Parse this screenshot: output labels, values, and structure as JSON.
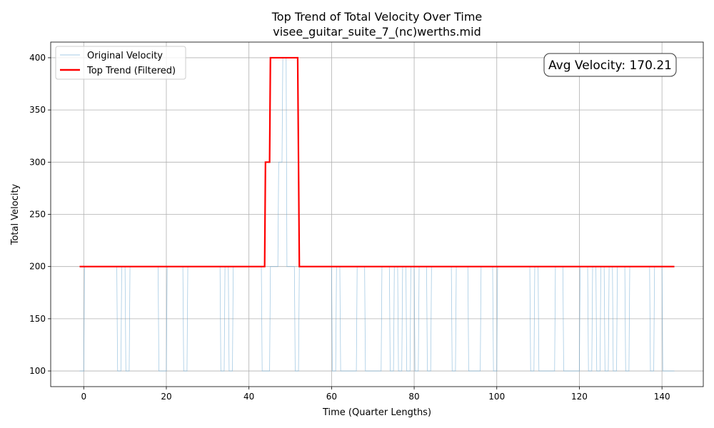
{
  "chart_data": {
    "type": "line",
    "title": "Top Trend of Total Velocity Over Time",
    "subtitle": "visee_guitar_suite_7_(nc)werths.mid",
    "xlabel": "Time (Quarter Lengths)",
    "ylabel": "Total Velocity",
    "xlim": [
      -8,
      150
    ],
    "ylim": [
      85,
      415
    ],
    "xticks": [
      0,
      20,
      40,
      60,
      80,
      100,
      120,
      140
    ],
    "yticks": [
      100,
      150,
      200,
      250,
      300,
      350,
      400
    ],
    "grid": true,
    "legend_position": "top-left",
    "annotation": "Avg Velocity: 170.21",
    "series": [
      {
        "name": "Original Velocity",
        "color": "#6aa8d2",
        "points": [
          [
            -1,
            100
          ],
          [
            0,
            100
          ],
          [
            0.2,
            200
          ],
          [
            8,
            200
          ],
          [
            8.2,
            100
          ],
          [
            9,
            100
          ],
          [
            9.2,
            200
          ],
          [
            10,
            200
          ],
          [
            10.2,
            100
          ],
          [
            11,
            100
          ],
          [
            11.2,
            200
          ],
          [
            18,
            200
          ],
          [
            18.2,
            100
          ],
          [
            20,
            100
          ],
          [
            20.2,
            200
          ],
          [
            24,
            200
          ],
          [
            24.2,
            100
          ],
          [
            25,
            100
          ],
          [
            25.2,
            200
          ],
          [
            33,
            200
          ],
          [
            33.2,
            100
          ],
          [
            34,
            100
          ],
          [
            34.2,
            200
          ],
          [
            35,
            200
          ],
          [
            35.2,
            100
          ],
          [
            36,
            100
          ],
          [
            36.2,
            200
          ],
          [
            43,
            200
          ],
          [
            43.2,
            100
          ],
          [
            45,
            100
          ],
          [
            45.2,
            200
          ],
          [
            47,
            200
          ],
          [
            47.2,
            300
          ],
          [
            48,
            300
          ],
          [
            48.2,
            400
          ],
          [
            49,
            400
          ],
          [
            49.2,
            200
          ],
          [
            51,
            200
          ],
          [
            51.2,
            100
          ],
          [
            52,
            100
          ],
          [
            52.2,
            200
          ],
          [
            60,
            200
          ],
          [
            60.2,
            100
          ],
          [
            61,
            100
          ],
          [
            61.2,
            200
          ],
          [
            62,
            200
          ],
          [
            62.2,
            100
          ],
          [
            66,
            100
          ],
          [
            66.2,
            200
          ],
          [
            68,
            200
          ],
          [
            68.2,
            100
          ],
          [
            72,
            100
          ],
          [
            72.2,
            200
          ],
          [
            74,
            200
          ],
          [
            74.2,
            100
          ],
          [
            75,
            100
          ],
          [
            75.2,
            200
          ],
          [
            76,
            200
          ],
          [
            76.2,
            100
          ],
          [
            77,
            100
          ],
          [
            77.2,
            200
          ],
          [
            78,
            200
          ],
          [
            78.2,
            100
          ],
          [
            79,
            100
          ],
          [
            79.2,
            200
          ],
          [
            80,
            200
          ],
          [
            80.2,
            100
          ],
          [
            81,
            100
          ],
          [
            81.2,
            200
          ],
          [
            83,
            200
          ],
          [
            83.2,
            100
          ],
          [
            84,
            100
          ],
          [
            84.2,
            200
          ],
          [
            89,
            200
          ],
          [
            89.2,
            100
          ],
          [
            90,
            100
          ],
          [
            90.2,
            200
          ],
          [
            93,
            200
          ],
          [
            93.2,
            100
          ],
          [
            96,
            100
          ],
          [
            96.2,
            200
          ],
          [
            99,
            200
          ],
          [
            99.2,
            100
          ],
          [
            100,
            100
          ],
          [
            100.2,
            200
          ],
          [
            108,
            200
          ],
          [
            108.2,
            100
          ],
          [
            109,
            100
          ],
          [
            109.2,
            200
          ],
          [
            110,
            200
          ],
          [
            110.2,
            100
          ],
          [
            114,
            100
          ],
          [
            114.2,
            200
          ],
          [
            116,
            200
          ],
          [
            116.2,
            100
          ],
          [
            120,
            100
          ],
          [
            120.2,
            200
          ],
          [
            122,
            200
          ],
          [
            122.2,
            100
          ],
          [
            123,
            100
          ],
          [
            123.2,
            200
          ],
          [
            124,
            200
          ],
          [
            124.2,
            100
          ],
          [
            125,
            100
          ],
          [
            125.2,
            200
          ],
          [
            126,
            200
          ],
          [
            126.2,
            100
          ],
          [
            127,
            100
          ],
          [
            127.2,
            200
          ],
          [
            128,
            200
          ],
          [
            128.2,
            100
          ],
          [
            129,
            100
          ],
          [
            129.2,
            200
          ],
          [
            131,
            200
          ],
          [
            131.2,
            100
          ],
          [
            132,
            100
          ],
          [
            132.2,
            200
          ],
          [
            137,
            200
          ],
          [
            137.2,
            100
          ],
          [
            138,
            100
          ],
          [
            138.2,
            200
          ],
          [
            140,
            200
          ],
          [
            140.2,
            100
          ],
          [
            142,
            100
          ],
          [
            143,
            100
          ]
        ]
      },
      {
        "name": "Top Trend (Filtered)",
        "color": "#ff0000",
        "points": [
          [
            -1,
            200
          ],
          [
            43.8,
            200
          ],
          [
            44,
            300
          ],
          [
            45,
            300
          ],
          [
            45.2,
            400
          ],
          [
            51.8,
            400
          ],
          [
            52.2,
            200
          ],
          [
            143,
            200
          ]
        ]
      }
    ]
  }
}
